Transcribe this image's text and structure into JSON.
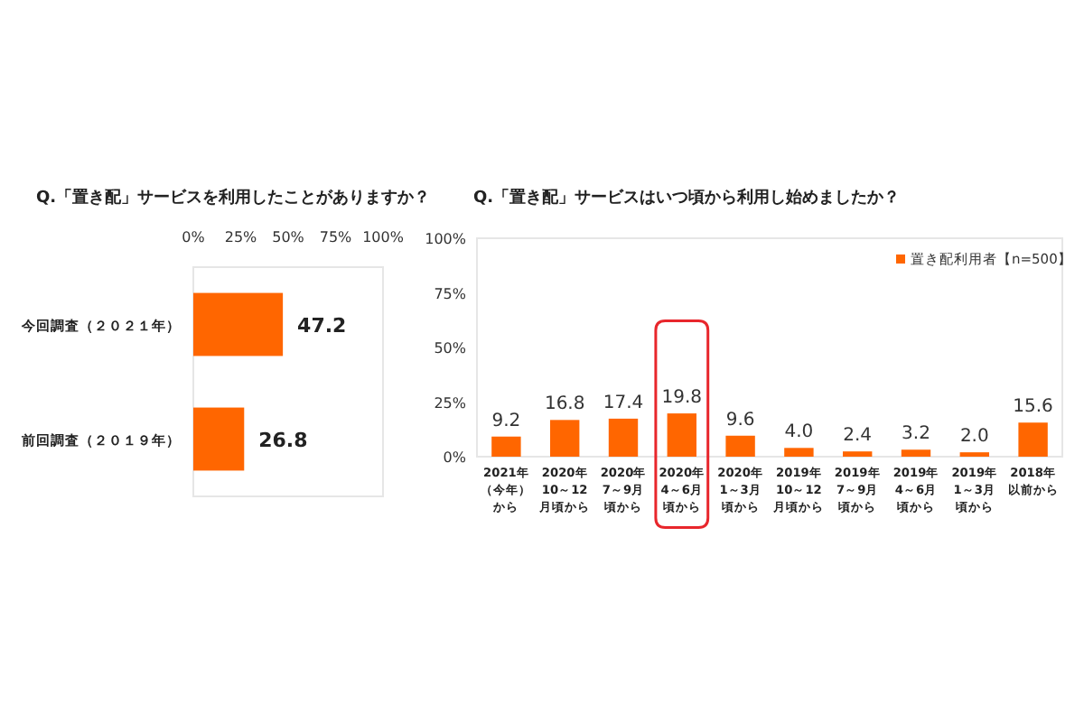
{
  "chart_data": [
    {
      "type": "bar",
      "title": "Q.「置き配」サービスを利用したことがありますか？",
      "orientation": "horizontal",
      "categories": [
        "今回調査（２０２１年）",
        "前回調査（２０１９年）"
      ],
      "values": [
        47.2,
        26.8
      ],
      "color": "#ff6600",
      "xlim": [
        0,
        100
      ],
      "xticks": [
        {
          "value": 0,
          "label": "0%"
        },
        {
          "value": 25,
          "label": "25%"
        },
        {
          "value": 50,
          "label": "50%"
        },
        {
          "value": 75,
          "label": "75%"
        },
        {
          "value": 100,
          "label": "100%"
        }
      ],
      "data_labels": true
    },
    {
      "type": "bar",
      "title": "Q.「置き配」サービスはいつ頃から利用し始めましたか？",
      "categories": [
        "2021年（今年）から",
        "2020年10～12月頃から",
        "2020年7～9月頃から",
        "2020年4～6月頃から",
        "2020年1～3月頃から",
        "2019年10～12月頃から",
        "2019年7～9月頃から",
        "2019年4～6月頃から",
        "2019年1～3月頃から",
        "2018年以前から"
      ],
      "series": [
        {
          "name": "置き配利用者【n=500】",
          "color": "#ff6600",
          "values": [
            9.2,
            16.8,
            17.4,
            19.8,
            9.6,
            4.0,
            2.4,
            3.2,
            2.0,
            15.6
          ],
          "value_labels": [
            "9.2",
            "16.8",
            "17.4",
            "19.8",
            "9.6",
            "4.0",
            "2.4",
            "3.2",
            "2.0",
            "15.6"
          ]
        }
      ],
      "ylim": [
        0,
        100
      ],
      "yticks": [
        {
          "value": 0,
          "label": "0%"
        },
        {
          "value": 25,
          "label": "25%"
        },
        {
          "value": 50,
          "label": "50%"
        },
        {
          "value": 75,
          "label": "75%"
        },
        {
          "value": 100,
          "label": "100%"
        }
      ],
      "legend": "top right",
      "bands": [
        {
          "axis": "x",
          "from": "2020年4～6月頃から",
          "to": "2020年4～6月頃から",
          "color": "#e8262c"
        }
      ]
    }
  ]
}
